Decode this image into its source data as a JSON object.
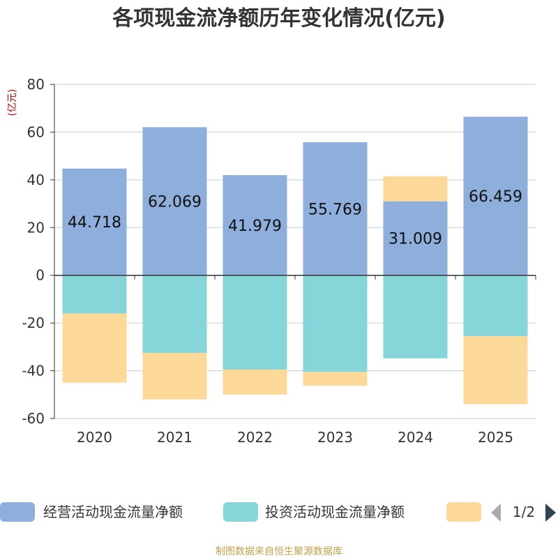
{
  "chart_data": {
    "type": "bar",
    "stacked": true,
    "title": "各项现金流净额历年变化情况(亿元)",
    "unit_label": "(亿元)",
    "categories": [
      "2020",
      "2021",
      "2022",
      "2023",
      "2024",
      "2025"
    ],
    "ylim": [
      -60,
      80
    ],
    "yticks": [
      -60,
      -40,
      -20,
      0,
      20,
      40,
      60,
      80
    ],
    "grid": true,
    "series": [
      {
        "name": "经营活动现金流量净额",
        "color": "#8eaedb",
        "values": [
          44.718,
          62.069,
          41.979,
          55.769,
          31.009,
          66.459
        ],
        "labels": [
          "44.718",
          "62.069",
          "41.979",
          "55.769",
          "31.009",
          "66.459"
        ]
      },
      {
        "name": "投资活动现金流量净额",
        "color": "#86d5d8",
        "values": [
          -16.0,
          -32.5,
          -39.5,
          -40.5,
          -34.8,
          -25.5
        ]
      },
      {
        "name": "",
        "color": "#fdd999",
        "values": [
          -29.0,
          -19.5,
          -10.5,
          -5.8,
          10.5,
          -28.5
        ]
      }
    ]
  },
  "legend": {
    "page": "1/2",
    "prev_icon": "triangle-left-icon",
    "next_icon": "triangle-right-icon"
  },
  "source": "制图数据来自恒生聚源数据库"
}
